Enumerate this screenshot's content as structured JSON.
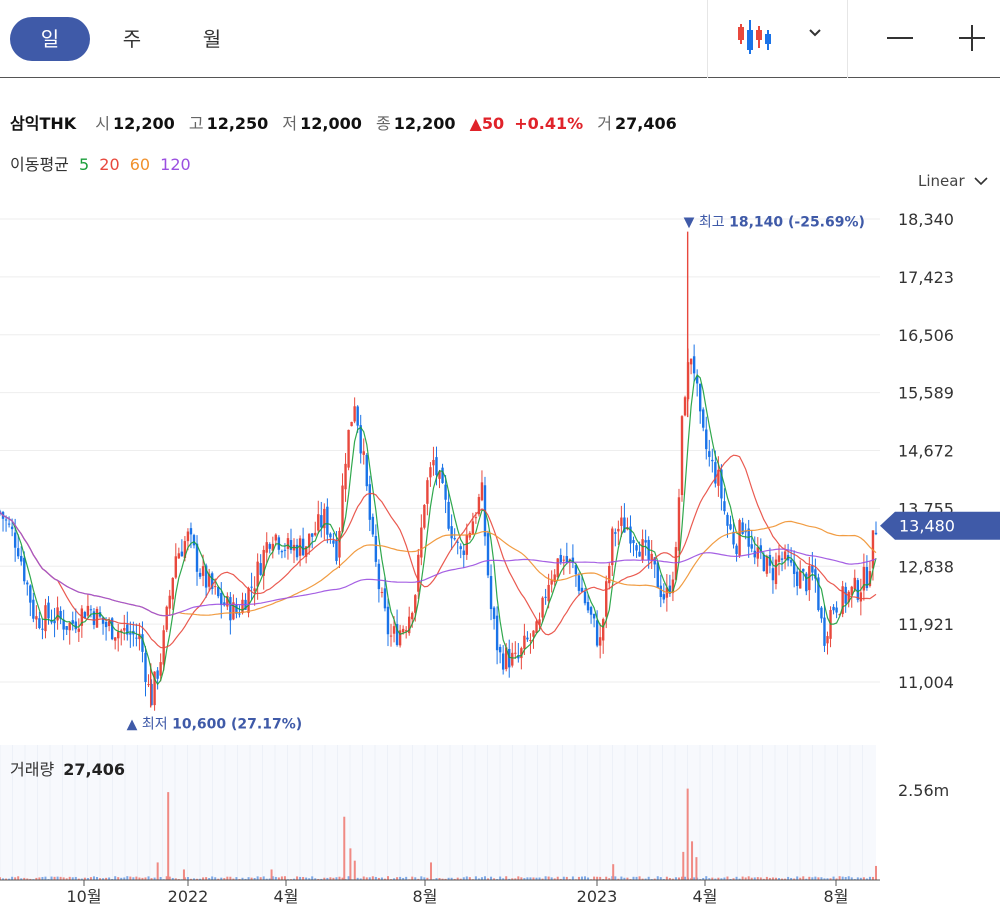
{
  "toolbar": {
    "periods": [
      {
        "label": "일",
        "active": true
      },
      {
        "label": "주",
        "active": false
      },
      {
        "label": "월",
        "active": false
      }
    ],
    "chart_type_icon": "candlestick-icon",
    "dropdown_icon": "chevron-down-icon",
    "zoom_out_icon": "minus-icon",
    "zoom_in_icon": "plus-icon"
  },
  "quote": {
    "name": "삼익THK",
    "open_label": "시",
    "open": "12,200",
    "high_label": "고",
    "high": "12,250",
    "low_label": "저",
    "low": "12,000",
    "close_label": "종",
    "close": "12,200",
    "change": "50",
    "change_pct": "+0.41%",
    "volume_label": "거",
    "volume": "27,406"
  },
  "moving_average": {
    "label": "이동평균",
    "periods": [
      {
        "value": "5",
        "color": "#1a9e3a"
      },
      {
        "value": "20",
        "color": "#e8483d"
      },
      {
        "value": "60",
        "color": "#f0912d"
      },
      {
        "value": "120",
        "color": "#9b4fe0"
      }
    ]
  },
  "scale": {
    "label": "Linear"
  },
  "colors": {
    "up": "#e8483d",
    "down": "#1a73e8",
    "accent": "#3f5aa8",
    "current": "#3f5aa8"
  },
  "chart_data": {
    "type": "candlestick",
    "y_ticks": [
      18340,
      17423,
      16506,
      15589,
      14672,
      13755,
      12838,
      11921,
      11004
    ],
    "y_tick_labels": [
      "18,340",
      "17,423",
      "16,506",
      "15,589",
      "14,672",
      "13,755",
      "12,838",
      "11,921",
      "11,004"
    ],
    "ylim": [
      10500,
      18500
    ],
    "x_labels": [
      "10월",
      "2022",
      "4월",
      "8월",
      "2023",
      "4월",
      "8월"
    ],
    "current_price": 13480,
    "current_price_label": "13,480",
    "high_marker": {
      "prefix": "▼ 최고",
      "value": "18,140",
      "pct": "(-25.69%)",
      "price": 18140,
      "index": 0.785
    },
    "low_marker": {
      "prefix": "▲ 최저",
      "value": "10,600",
      "pct": "(27.17%)",
      "price": 10600,
      "index": 0.172
    },
    "price_path": [
      [
        0.0,
        13700
      ],
      [
        0.02,
        13200
      ],
      [
        0.04,
        12000
      ],
      [
        0.06,
        12050
      ],
      [
        0.08,
        11900
      ],
      [
        0.1,
        12200
      ],
      [
        0.12,
        11900
      ],
      [
        0.14,
        11800
      ],
      [
        0.16,
        11700
      ],
      [
        0.172,
        10700
      ],
      [
        0.185,
        11500
      ],
      [
        0.2,
        13000
      ],
      [
        0.215,
        13300
      ],
      [
        0.23,
        12700
      ],
      [
        0.25,
        12300
      ],
      [
        0.27,
        12100
      ],
      [
        0.29,
        12600
      ],
      [
        0.31,
        13400
      ],
      [
        0.33,
        13100
      ],
      [
        0.35,
        13200
      ],
      [
        0.37,
        13600
      ],
      [
        0.385,
        13100
      ],
      [
        0.395,
        14700
      ],
      [
        0.405,
        15500
      ],
      [
        0.415,
        14500
      ],
      [
        0.425,
        13200
      ],
      [
        0.435,
        12300
      ],
      [
        0.445,
        11700
      ],
      [
        0.455,
        11800
      ],
      [
        0.465,
        12000
      ],
      [
        0.475,
        12500
      ],
      [
        0.485,
        14000
      ],
      [
        0.495,
        14500
      ],
      [
        0.51,
        13700
      ],
      [
        0.525,
        13000
      ],
      [
        0.54,
        13600
      ],
      [
        0.55,
        14000
      ],
      [
        0.56,
        12200
      ],
      [
        0.57,
        11400
      ],
      [
        0.58,
        11400
      ],
      [
        0.59,
        11300
      ],
      [
        0.6,
        11600
      ],
      [
        0.615,
        11800
      ],
      [
        0.625,
        12600
      ],
      [
        0.64,
        13000
      ],
      [
        0.655,
        12800
      ],
      [
        0.67,
        12200
      ],
      [
        0.685,
        11600
      ],
      [
        0.7,
        13400
      ],
      [
        0.715,
        13500
      ],
      [
        0.73,
        13200
      ],
      [
        0.745,
        12800
      ],
      [
        0.76,
        12300
      ],
      [
        0.772,
        13000
      ],
      [
        0.78,
        15500
      ],
      [
        0.79,
        16300
      ],
      [
        0.8,
        15000
      ],
      [
        0.81,
        14500
      ],
      [
        0.82,
        14200
      ],
      [
        0.83,
        13500
      ],
      [
        0.84,
        13200
      ],
      [
        0.85,
        13600
      ],
      [
        0.86,
        12900
      ],
      [
        0.87,
        13000
      ],
      [
        0.88,
        12700
      ],
      [
        0.89,
        13000
      ],
      [
        0.9,
        12800
      ],
      [
        0.91,
        12700
      ],
      [
        0.92,
        12600
      ],
      [
        0.93,
        12700
      ],
      [
        0.94,
        11700
      ],
      [
        0.95,
        12200
      ],
      [
        0.96,
        12300
      ],
      [
        0.97,
        12400
      ],
      [
        0.98,
        12500
      ],
      [
        0.99,
        12700
      ],
      [
        1.0,
        13480
      ]
    ],
    "volume": {
      "label": "거래량",
      "value": "27,406",
      "axis_max_label": "2.56m",
      "axis_max": 2560000,
      "spikes": [
        [
          0.192,
          2500000
        ],
        [
          0.18,
          500000
        ],
        [
          0.21,
          300000
        ],
        [
          0.31,
          300000
        ],
        [
          0.393,
          1800000
        ],
        [
          0.4,
          900000
        ],
        [
          0.405,
          550000
        ],
        [
          0.492,
          500000
        ],
        [
          0.7,
          450000
        ],
        [
          0.78,
          800000
        ],
        [
          0.785,
          2600000
        ],
        [
          0.79,
          1100000
        ],
        [
          0.795,
          650000
        ],
        [
          1.0,
          400000
        ]
      ]
    }
  }
}
